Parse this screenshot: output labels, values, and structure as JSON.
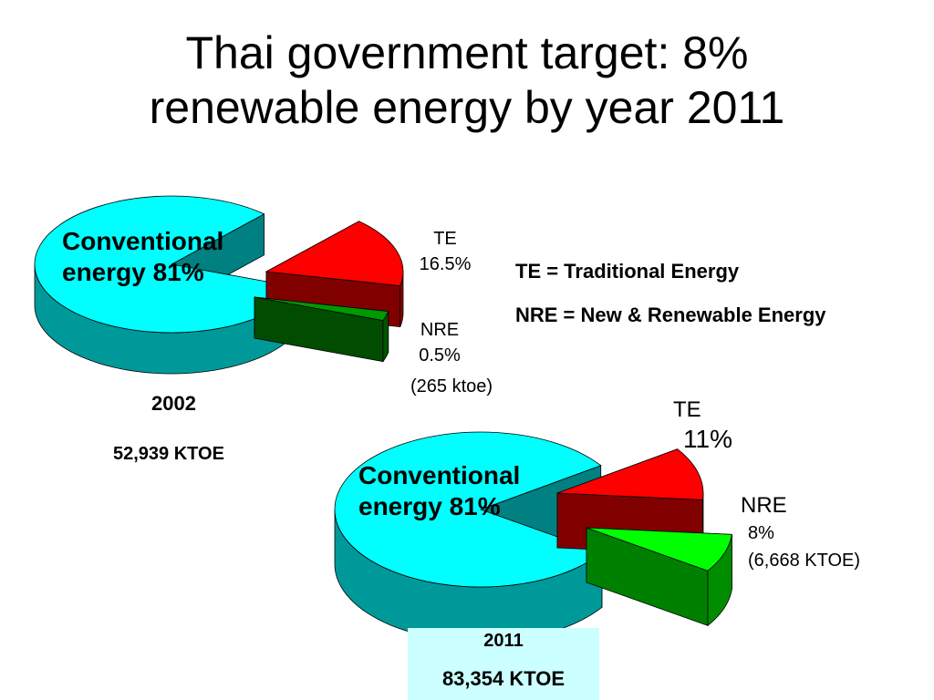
{
  "title": {
    "line1": "Thai government target: 8%",
    "line2": "renewable energy by year 2011"
  },
  "legend": {
    "te": "TE = Traditional Energy",
    "nre": "NRE = New & Renewable Energy"
  },
  "colors": {
    "conventional": "#00ffff",
    "te": "#ff0000",
    "nre_2002": "#009900",
    "nre_2011": "#00ff00"
  },
  "chart_data": [
    {
      "type": "pie",
      "year": "2002",
      "total": "52,939 KTOE",
      "slices": [
        {
          "name": "Conventional energy 81%",
          "percent": 81
        },
        {
          "name": "TE",
          "label": "16.5%",
          "percent": 16.5
        },
        {
          "name": "NRE",
          "label": "0.5%",
          "note": "(265 ktoe)",
          "percent": 0.5
        }
      ]
    },
    {
      "type": "pie",
      "year": "2011",
      "total": "83,354 KTOE",
      "slices": [
        {
          "name": "Conventional energy 81%",
          "percent": 81
        },
        {
          "name": "TE",
          "label": "11%",
          "percent": 11
        },
        {
          "name": "NRE",
          "label": "8%",
          "note": "(6,668 KTOE)",
          "percent": 8
        }
      ]
    }
  ]
}
